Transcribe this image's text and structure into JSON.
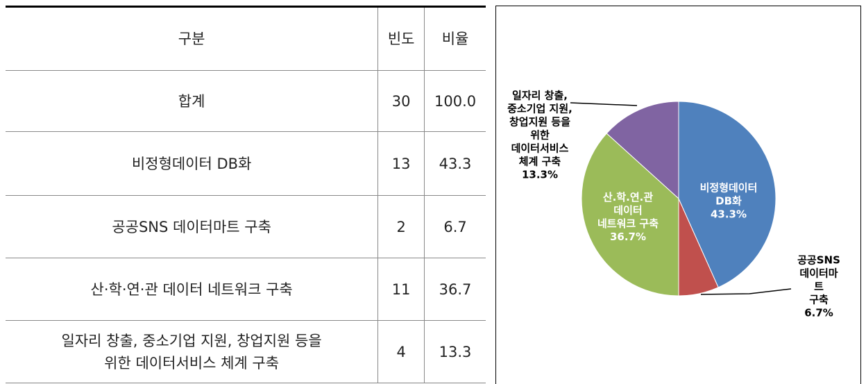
{
  "table": {
    "header": [
      "구분",
      "빈도",
      "비율"
    ],
    "rows": [
      [
        "합계",
        "30",
        "100.0"
      ],
      [
        "비정형데이터 DB화",
        "13",
        "43.3"
      ],
      [
        "공공SNS 데이터마트 구축",
        "2",
        "6.7"
      ],
      [
        "산·학·연·관 데이터 네트워크 구축",
        "11",
        "36.7"
      ],
      [
        "일자리 창출, 중소기업 지원, 창업지원 등을\n위한 데이터서비스 체계 구축",
        "4",
        "13.3"
      ]
    ]
  },
  "chart_data": {
    "type": "pie",
    "categories": [
      "비정형데이터\nDB화",
      "공공SNS\n데이터마트\n구축",
      "산.학.연.관\n데이터\n네트워크 구축",
      "일자리 창출,\n중소기업 지원,\n창업지원 등을\n위한\n데이터서비스\n체계 구축"
    ],
    "values": [
      43.3,
      6.7,
      36.7,
      13.3
    ],
    "value_labels": [
      "43.3%",
      "6.7%",
      "36.7%",
      "13.3%"
    ],
    "colors": [
      "#4f81bd",
      "#c0504d",
      "#9bbb59",
      "#8064a2"
    ]
  }
}
